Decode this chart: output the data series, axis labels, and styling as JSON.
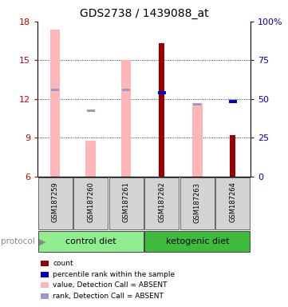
{
  "title": "GDS2738 / 1439088_at",
  "samples": [
    "GSM187259",
    "GSM187260",
    "GSM187261",
    "GSM187262",
    "GSM187263",
    "GSM187264"
  ],
  "ylim_left": [
    6,
    18
  ],
  "ylim_right": [
    0,
    100
  ],
  "yticks_left": [
    6,
    9,
    12,
    15,
    18
  ],
  "yticks_right": [
    0,
    25,
    50,
    75,
    100
  ],
  "ytick_labels_right": [
    "0",
    "25",
    "50",
    "75",
    "100%"
  ],
  "pink_bars_top": [
    17.4,
    8.8,
    15.0,
    null,
    11.7,
    null
  ],
  "red_bars_top": [
    null,
    null,
    null,
    16.3,
    null,
    9.2
  ],
  "blue_sq_y": [
    null,
    null,
    null,
    12.5,
    null,
    11.8
  ],
  "light_blue_sq_y": [
    12.7,
    11.1,
    12.7,
    12.5,
    11.6,
    null
  ],
  "bar_bottom": 6,
  "bar_color_pink": "#ffb6b6",
  "bar_color_red": "#9b0000",
  "blue_color": "#0000cc",
  "light_blue_color": "#9999cc",
  "left_axis_color": "#cc0000",
  "right_axis_color": "#0000cc",
  "background_color": "#ffffff",
  "sample_box_color": "#d3d3d3",
  "control_color": "#90ee90",
  "keto_color": "#3dbb3d",
  "legend_labels": [
    "count",
    "percentile rank within the sample",
    "value, Detection Call = ABSENT",
    "rank, Detection Call = ABSENT"
  ]
}
